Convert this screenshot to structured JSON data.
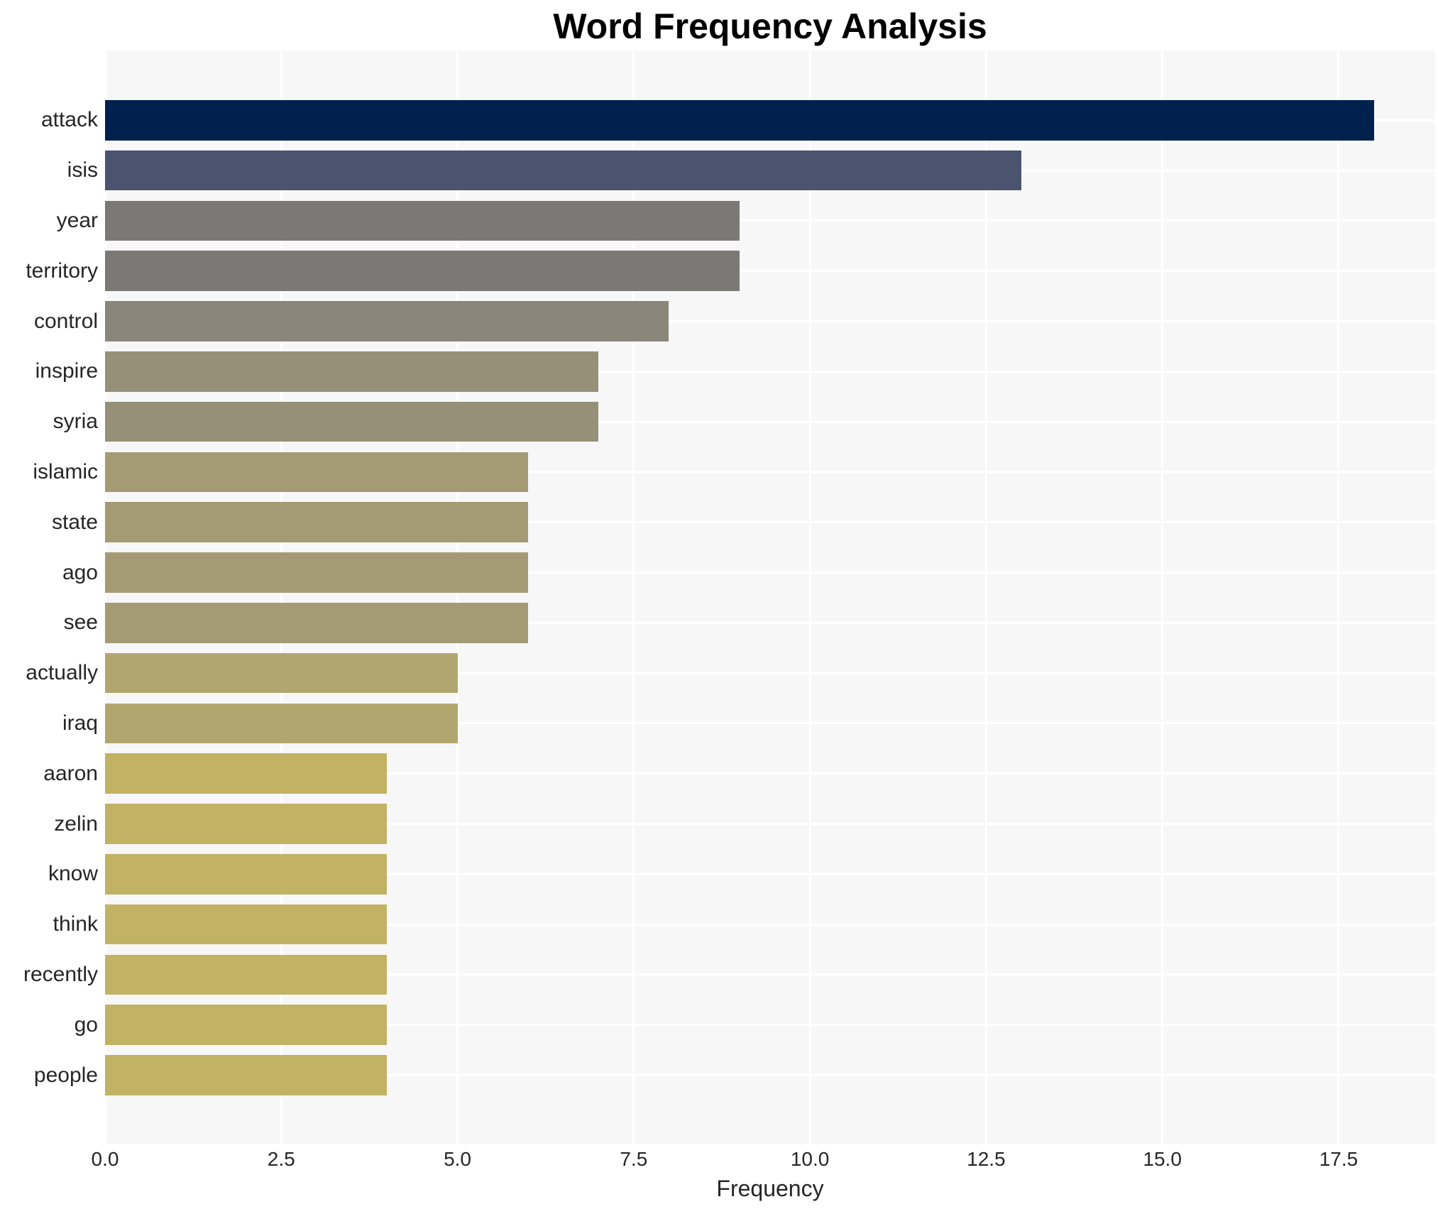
{
  "chart_data": {
    "type": "bar",
    "orientation": "horizontal",
    "title": "Word Frequency Analysis",
    "xlabel": "Frequency",
    "ylabel": "",
    "categories": [
      "attack",
      "isis",
      "year",
      "territory",
      "control",
      "inspire",
      "syria",
      "islamic",
      "state",
      "ago",
      "see",
      "actually",
      "iraq",
      "aaron",
      "zelin",
      "know",
      "think",
      "recently",
      "go",
      "people"
    ],
    "values": [
      18,
      13,
      9,
      9,
      8,
      7,
      7,
      6,
      6,
      6,
      6,
      5,
      5,
      4,
      4,
      4,
      4,
      4,
      4,
      4
    ],
    "bar_colors": [
      "#00214d",
      "#4a546f",
      "#7b7975",
      "#7b7975",
      "#8b867a",
      "#969078",
      "#969078",
      "#a49b75",
      "#a49b75",
      "#a49b75",
      "#a49b75",
      "#b1a76e",
      "#b1a76e",
      "#c2b264",
      "#c2b264",
      "#c2b264",
      "#c2b264",
      "#c2b264",
      "#c2b264",
      "#c2b264"
    ],
    "xlim": [
      0,
      18.87
    ],
    "xticks": [
      {
        "label": "0.0",
        "value": 0
      },
      {
        "label": "2.5",
        "value": 2.5
      },
      {
        "label": "5.0",
        "value": 5
      },
      {
        "label": "7.5",
        "value": 7.5
      },
      {
        "label": "10.0",
        "value": 10
      },
      {
        "label": "12.5",
        "value": 12.5
      },
      {
        "label": "15.0",
        "value": 15
      },
      {
        "label": "17.5",
        "value": 17.5
      }
    ],
    "grid": true,
    "legend": false,
    "plot_bg_color": "#f7f7f8",
    "grid_color": "#ffffff",
    "text_color": "#262626",
    "title_color": "#000000"
  }
}
